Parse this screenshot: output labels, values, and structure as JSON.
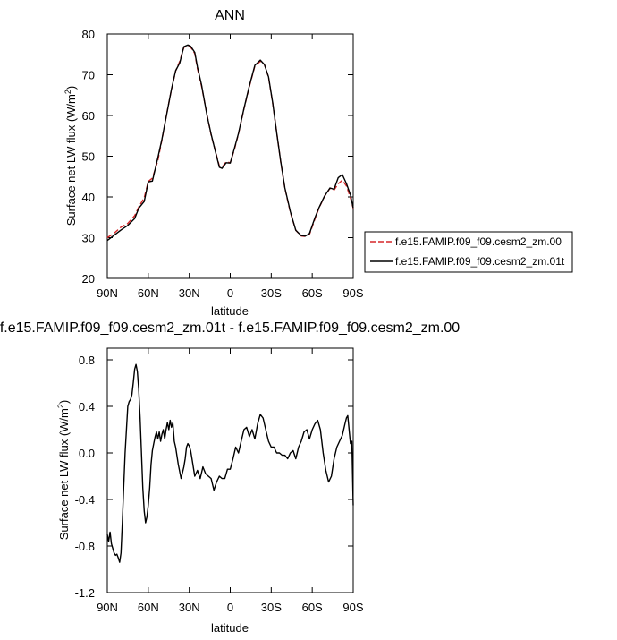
{
  "chart_data": [
    {
      "type": "line",
      "title": "ANN",
      "xlabel": "latitude",
      "ylabel": "Surface net LW flux (W/m²)",
      "ylabel_main": "Surface net LW flux (W/m",
      "ylabel_sup": "2",
      "ylabel_tail": ")",
      "xlim": [
        90,
        -90
      ],
      "ylim": [
        20,
        80
      ],
      "grid": false,
      "legend": "right",
      "xticks": [
        {
          "value": 90,
          "label": "90N"
        },
        {
          "value": 60,
          "label": "60N"
        },
        {
          "value": 30,
          "label": "30N"
        },
        {
          "value": 0,
          "label": "0"
        },
        {
          "value": -30,
          "label": "30S"
        },
        {
          "value": -60,
          "label": "60S"
        },
        {
          "value": -90,
          "label": "90S"
        }
      ],
      "yticks": [
        {
          "value": 20,
          "label": "20"
        },
        {
          "value": 30,
          "label": "30"
        },
        {
          "value": 40,
          "label": "40"
        },
        {
          "value": 50,
          "label": "50"
        },
        {
          "value": 60,
          "label": "60"
        },
        {
          "value": 70,
          "label": "70"
        },
        {
          "value": 80,
          "label": "80"
        }
      ],
      "x": [
        90,
        85,
        80,
        75,
        70,
        67,
        63,
        60,
        57,
        53,
        50,
        46,
        43,
        40,
        37,
        34,
        31,
        29,
        26,
        24,
        21,
        17,
        14,
        11,
        8,
        6,
        3,
        0,
        -3,
        -6,
        -10,
        -14,
        -18,
        -22,
        -25,
        -28,
        -31,
        -34,
        -37,
        -40,
        -44,
        -48,
        -52,
        -55,
        -58,
        -62,
        -65,
        -69,
        -73,
        -76,
        -79,
        -82,
        -85,
        -88,
        -90
      ],
      "series": [
        {
          "name": "f.e15.FAMIP.f09_f09.cesm2_zm.00",
          "color": "#d62728",
          "dash": "6,3",
          "values": [
            30.0,
            31.1,
            32.6,
            33.5,
            35.4,
            37.5,
            39.8,
            43.8,
            44.6,
            48.9,
            54.0,
            61.3,
            66.4,
            70.9,
            73.3,
            76.7,
            77.1,
            76.8,
            75.2,
            71.5,
            67.2,
            60.2,
            55.2,
            51.4,
            47.6,
            47.3,
            48.6,
            48.4,
            51.6,
            55.5,
            61.6,
            67.1,
            72.1,
            73.3,
            72.5,
            69.4,
            63.1,
            55.9,
            48.5,
            42.1,
            36.2,
            31.8,
            30.4,
            30.3,
            30.8,
            34.6,
            37.3,
            40.1,
            42.1,
            41.7,
            43.2,
            44.1,
            42.7,
            39.8,
            37.2
          ]
        },
        {
          "name": "f.e15.FAMIP.f09_f09.cesm2_zm.01t",
          "color": "#000000",
          "dash": "",
          "values": [
            29.3,
            30.6,
            31.9,
            33.0,
            34.7,
            37.2,
            38.9,
            43.7,
            43.9,
            49.6,
            54.2,
            61.2,
            66.5,
            71.0,
            72.9,
            76.9,
            77.3,
            77.0,
            75.5,
            71.9,
            67.5,
            60.0,
            55.4,
            51.3,
            47.3,
            47.0,
            48.4,
            48.3,
            51.9,
            55.6,
            61.7,
            67.3,
            72.3,
            73.6,
            72.5,
            69.5,
            63.2,
            55.8,
            48.6,
            42.2,
            36.4,
            31.8,
            30.5,
            30.4,
            31.0,
            34.9,
            37.4,
            40.2,
            42.2,
            41.9,
            44.7,
            45.5,
            43.3,
            40.5,
            37.3
          ]
        }
      ]
    },
    {
      "type": "line",
      "title": "f.e15.FAMIP.f09_f09.cesm2_zm.01t - f.e15.FAMIP.f09_f09.cesm2_zm.00",
      "xlabel": "latitude",
      "ylabel": "Surface net LW flux (W/m²)",
      "ylabel_main": "Surface net LW flux (W/m",
      "ylabel_sup": "2",
      "ylabel_tail": ")",
      "xlim": [
        90,
        -90
      ],
      "ylim": [
        -1.2,
        0.9
      ],
      "grid": false,
      "xticks": [
        {
          "value": 90,
          "label": "90N"
        },
        {
          "value": 60,
          "label": "60N"
        },
        {
          "value": 30,
          "label": "30N"
        },
        {
          "value": 0,
          "label": "0"
        },
        {
          "value": -30,
          "label": "30S"
        },
        {
          "value": -60,
          "label": "60S"
        },
        {
          "value": -90,
          "label": "90S"
        }
      ],
      "yticks": [
        {
          "value": -1.2,
          "label": "-1.2"
        },
        {
          "value": -0.8,
          "label": "-0.8"
        },
        {
          "value": -0.4,
          "label": "-0.4"
        },
        {
          "value": 0.0,
          "label": "0.0"
        },
        {
          "value": 0.4,
          "label": "0.4"
        },
        {
          "value": 0.8,
          "label": "0.8"
        }
      ],
      "x": [
        90,
        89,
        88,
        87,
        86,
        85,
        84,
        83,
        82,
        81,
        80,
        79,
        78,
        77,
        76,
        75,
        74,
        73,
        72,
        71,
        70,
        69,
        68,
        67,
        66,
        65,
        64,
        63,
        62,
        61,
        60,
        59,
        58,
        57,
        56,
        55,
        54,
        53,
        52,
        51,
        50,
        49,
        48,
        47,
        46,
        45,
        44,
        43,
        42,
        41,
        40,
        38,
        36,
        34,
        33,
        32,
        31,
        30,
        29,
        28,
        26,
        24,
        22,
        20,
        18,
        16,
        14,
        12,
        10,
        8,
        6,
        4,
        2,
        0,
        -2,
        -4,
        -6,
        -8,
        -10,
        -12,
        -14,
        -16,
        -18,
        -20,
        -22,
        -24,
        -26,
        -28,
        -30,
        -32,
        -34,
        -36,
        -38,
        -40,
        -42,
        -44,
        -46,
        -48,
        -50,
        -52,
        -54,
        -56,
        -58,
        -60,
        -62,
        -64,
        -66,
        -68,
        -70,
        -72,
        -74,
        -76,
        -78,
        -80,
        -82,
        -84,
        -85,
        -86,
        -87,
        -88,
        -89,
        -90
      ],
      "series": [
        {
          "name": "f.e15.FAMIP.f09_f09.cesm2_zm.01t - f.e15.FAMIP.f09_f09.cesm2_zm.00",
          "color": "#000000",
          "dash": "",
          "values": [
            -0.7,
            -0.76,
            -0.68,
            -0.78,
            -0.82,
            -0.86,
            -0.88,
            -0.87,
            -0.9,
            -0.94,
            -0.86,
            -0.6,
            -0.3,
            0.0,
            0.2,
            0.4,
            0.44,
            0.46,
            0.5,
            0.6,
            0.72,
            0.76,
            0.7,
            0.55,
            0.3,
            0.0,
            -0.3,
            -0.5,
            -0.6,
            -0.55,
            -0.45,
            -0.3,
            -0.1,
            0.02,
            0.08,
            0.14,
            0.18,
            0.12,
            0.18,
            0.1,
            0.16,
            0.2,
            0.12,
            0.2,
            0.26,
            0.2,
            0.28,
            0.22,
            0.26,
            0.1,
            0.05,
            -0.1,
            -0.22,
            -0.12,
            -0.05,
            0.05,
            0.08,
            0.06,
            0.02,
            -0.05,
            -0.2,
            -0.15,
            -0.22,
            -0.12,
            -0.18,
            -0.2,
            -0.22,
            -0.32,
            -0.25,
            -0.2,
            -0.22,
            -0.22,
            -0.14,
            -0.14,
            -0.05,
            0.05,
            0.0,
            0.1,
            0.2,
            0.22,
            0.14,
            0.2,
            0.12,
            0.25,
            0.33,
            0.3,
            0.2,
            0.1,
            0.05,
            0.05,
            0.0,
            0.0,
            -0.02,
            -0.02,
            -0.05,
            0.0,
            0.02,
            -0.05,
            0.05,
            0.1,
            0.18,
            0.2,
            0.12,
            0.2,
            0.25,
            0.28,
            0.2,
            0.0,
            -0.15,
            -0.25,
            -0.2,
            -0.05,
            0.05,
            0.1,
            0.15,
            0.25,
            0.3,
            0.32,
            0.2,
            0.08,
            0.1,
            -0.45
          ]
        }
      ]
    }
  ]
}
